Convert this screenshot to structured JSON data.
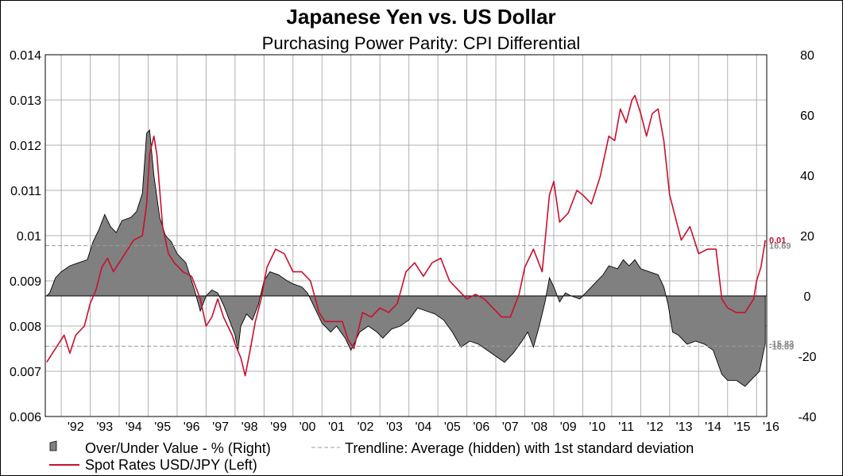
{
  "chart_data": {
    "type": "area",
    "title": "Japanese Yen vs. US Dollar",
    "subtitle": "Purchasing Power Parity: CPI Differential",
    "xlabel": "",
    "ylabel": "",
    "x_ticks": [
      "'92",
      "'93",
      "'94",
      "'95",
      "'96",
      "'97",
      "'98",
      "'99",
      "'00",
      "'01",
      "'02",
      "'03",
      "'04",
      "'05",
      "'06",
      "'07",
      "'08",
      "'09",
      "'10",
      "'11",
      "'12",
      "'13",
      "'14",
      "'15",
      "'16"
    ],
    "x_range": [
      1991.45,
      2016.35
    ],
    "left_axis": {
      "ylim": [
        0.006,
        0.014
      ],
      "ticks": [
        "0.006",
        "0.007",
        "0.008",
        "0.009",
        "0.01",
        "0.011",
        "0.012",
        "0.013",
        "0.014"
      ]
    },
    "right_axis": {
      "ylim": [
        -40,
        80
      ],
      "ticks": [
        "-40",
        "-20",
        "0",
        "20",
        "40",
        "60",
        "80"
      ]
    },
    "grid": true,
    "legend_position": "bottom",
    "series": [
      {
        "name": "Over/Under Value - %  (Right)",
        "axis": "right",
        "kind": "area",
        "color": "#808080",
        "points": [
          [
            1991.5,
            0
          ],
          [
            1991.6,
            1
          ],
          [
            1991.8,
            6
          ],
          [
            1992.0,
            8
          ],
          [
            1992.3,
            10
          ],
          [
            1992.6,
            11
          ],
          [
            1992.9,
            12
          ],
          [
            1993.1,
            18
          ],
          [
            1993.3,
            22
          ],
          [
            1993.5,
            27
          ],
          [
            1993.7,
            23
          ],
          [
            1993.9,
            21
          ],
          [
            1994.1,
            25
          ],
          [
            1994.4,
            26
          ],
          [
            1994.6,
            28
          ],
          [
            1994.8,
            34
          ],
          [
            1994.95,
            54
          ],
          [
            1995.05,
            55
          ],
          [
            1995.2,
            40
          ],
          [
            1995.4,
            26
          ],
          [
            1995.6,
            20
          ],
          [
            1995.8,
            18
          ],
          [
            1996.0,
            14
          ],
          [
            1996.3,
            11
          ],
          [
            1996.6,
            2
          ],
          [
            1996.8,
            -5
          ],
          [
            1997.0,
            0
          ],
          [
            1997.2,
            2
          ],
          [
            1997.4,
            1
          ],
          [
            1997.6,
            -3
          ],
          [
            1997.8,
            -8
          ],
          [
            1998.0,
            -13
          ],
          [
            1998.1,
            -18
          ],
          [
            1998.2,
            -10
          ],
          [
            1998.4,
            -6
          ],
          [
            1998.6,
            -8
          ],
          [
            1998.8,
            -3
          ],
          [
            1999.0,
            5
          ],
          [
            1999.2,
            8
          ],
          [
            1999.5,
            7
          ],
          [
            1999.8,
            5
          ],
          [
            2000.0,
            4
          ],
          [
            2000.3,
            3
          ],
          [
            2000.5,
            1
          ],
          [
            2000.8,
            -5
          ],
          [
            2001.0,
            -9
          ],
          [
            2001.3,
            -12
          ],
          [
            2001.5,
            -10
          ],
          [
            2001.8,
            -14
          ],
          [
            2002.0,
            -18
          ],
          [
            2002.3,
            -12
          ],
          [
            2002.6,
            -10
          ],
          [
            2002.9,
            -12
          ],
          [
            2003.1,
            -14
          ],
          [
            2003.4,
            -11
          ],
          [
            2003.7,
            -10
          ],
          [
            2004.0,
            -8
          ],
          [
            2004.3,
            -4
          ],
          [
            2004.6,
            -5
          ],
          [
            2004.9,
            -6
          ],
          [
            2005.2,
            -8
          ],
          [
            2005.5,
            -12
          ],
          [
            2005.8,
            -17
          ],
          [
            2006.1,
            -15
          ],
          [
            2006.4,
            -16
          ],
          [
            2006.7,
            -18
          ],
          [
            2007.0,
            -20
          ],
          [
            2007.3,
            -22
          ],
          [
            2007.6,
            -19
          ],
          [
            2007.9,
            -15
          ],
          [
            2008.1,
            -12
          ],
          [
            2008.3,
            -17
          ],
          [
            2008.5,
            -10
          ],
          [
            2008.7,
            -2
          ],
          [
            2008.85,
            6
          ],
          [
            2009.0,
            3
          ],
          [
            2009.2,
            -2
          ],
          [
            2009.4,
            1
          ],
          [
            2009.6,
            0
          ],
          [
            2009.9,
            -1
          ],
          [
            2010.1,
            1
          ],
          [
            2010.4,
            4
          ],
          [
            2010.7,
            7
          ],
          [
            2010.9,
            10
          ],
          [
            2011.2,
            9
          ],
          [
            2011.4,
            12
          ],
          [
            2011.6,
            10
          ],
          [
            2011.8,
            12
          ],
          [
            2012.0,
            9
          ],
          [
            2012.3,
            8
          ],
          [
            2012.6,
            7
          ],
          [
            2012.8,
            3
          ],
          [
            2012.95,
            -3
          ],
          [
            2013.1,
            -12
          ],
          [
            2013.3,
            -13
          ],
          [
            2013.6,
            -16
          ],
          [
            2013.9,
            -15
          ],
          [
            2014.2,
            -16
          ],
          [
            2014.5,
            -18
          ],
          [
            2014.8,
            -26
          ],
          [
            2015.0,
            -28
          ],
          [
            2015.3,
            -28
          ],
          [
            2015.6,
            -30
          ],
          [
            2015.9,
            -27
          ],
          [
            2016.1,
            -25
          ],
          [
            2016.25,
            -18
          ],
          [
            2016.3,
            -15.83
          ]
        ]
      },
      {
        "name": "Trendline: Average (hidden) with 1st standard deviation",
        "axis": "right",
        "kind": "bands",
        "color": "#999999",
        "values": [
          16.69,
          -16.69
        ]
      },
      {
        "name": "Spot Rates USD/JPY  (Left)",
        "axis": "left",
        "kind": "line",
        "color": "#c8102e",
        "points": [
          [
            1991.5,
            0.0072
          ],
          [
            1991.7,
            0.0074
          ],
          [
            1991.9,
            0.0076
          ],
          [
            1992.1,
            0.0078
          ],
          [
            1992.3,
            0.0074
          ],
          [
            1992.5,
            0.0078
          ],
          [
            1992.8,
            0.008
          ],
          [
            1993.0,
            0.0085
          ],
          [
            1993.2,
            0.0088
          ],
          [
            1993.4,
            0.0093
          ],
          [
            1993.6,
            0.0095
          ],
          [
            1993.8,
            0.0092
          ],
          [
            1994.0,
            0.0094
          ],
          [
            1994.2,
            0.0096
          ],
          [
            1994.5,
            0.0099
          ],
          [
            1994.8,
            0.01
          ],
          [
            1994.95,
            0.0107
          ],
          [
            1995.05,
            0.0118
          ],
          [
            1995.2,
            0.0122
          ],
          [
            1995.3,
            0.0118
          ],
          [
            1995.5,
            0.0102
          ],
          [
            1995.7,
            0.0096
          ],
          [
            1995.9,
            0.0094
          ],
          [
            1996.2,
            0.0092
          ],
          [
            1996.5,
            0.0091
          ],
          [
            1996.8,
            0.0086
          ],
          [
            1997.0,
            0.008
          ],
          [
            1997.2,
            0.0082
          ],
          [
            1997.4,
            0.0086
          ],
          [
            1997.6,
            0.0082
          ],
          [
            1997.9,
            0.0078
          ],
          [
            1998.0,
            0.0076
          ],
          [
            1998.2,
            0.0073
          ],
          [
            1998.35,
            0.0069
          ],
          [
            1998.5,
            0.0074
          ],
          [
            1998.7,
            0.0081
          ],
          [
            1998.9,
            0.0086
          ],
          [
            1999.1,
            0.0093
          ],
          [
            1999.4,
            0.0097
          ],
          [
            1999.7,
            0.0096
          ],
          [
            2000.0,
            0.0092
          ],
          [
            2000.3,
            0.0092
          ],
          [
            2000.6,
            0.009
          ],
          [
            2000.9,
            0.0083
          ],
          [
            2001.1,
            0.0081
          ],
          [
            2001.4,
            0.0081
          ],
          [
            2001.7,
            0.0081
          ],
          [
            2001.9,
            0.0077
          ],
          [
            2002.1,
            0.0075
          ],
          [
            2002.4,
            0.0083
          ],
          [
            2002.7,
            0.0082
          ],
          [
            2003.0,
            0.0084
          ],
          [
            2003.3,
            0.0083
          ],
          [
            2003.6,
            0.0085
          ],
          [
            2003.9,
            0.0092
          ],
          [
            2004.2,
            0.0094
          ],
          [
            2004.5,
            0.0091
          ],
          [
            2004.8,
            0.0094
          ],
          [
            2005.1,
            0.0095
          ],
          [
            2005.4,
            0.009
          ],
          [
            2005.7,
            0.0088
          ],
          [
            2006.0,
            0.0086
          ],
          [
            2006.3,
            0.0087
          ],
          [
            2006.6,
            0.0086
          ],
          [
            2006.9,
            0.0084
          ],
          [
            2007.2,
            0.0082
          ],
          [
            2007.5,
            0.0082
          ],
          [
            2007.8,
            0.0087
          ],
          [
            2008.0,
            0.0093
          ],
          [
            2008.3,
            0.0097
          ],
          [
            2008.6,
            0.0092
          ],
          [
            2008.85,
            0.0109
          ],
          [
            2009.0,
            0.0112
          ],
          [
            2009.2,
            0.0103
          ],
          [
            2009.5,
            0.0105
          ],
          [
            2009.8,
            0.011
          ],
          [
            2010.0,
            0.0109
          ],
          [
            2010.3,
            0.0107
          ],
          [
            2010.6,
            0.0113
          ],
          [
            2010.9,
            0.0122
          ],
          [
            2011.1,
            0.0121
          ],
          [
            2011.3,
            0.0128
          ],
          [
            2011.5,
            0.0125
          ],
          [
            2011.7,
            0.013
          ],
          [
            2011.8,
            0.0131
          ],
          [
            2012.0,
            0.0127
          ],
          [
            2012.2,
            0.0122
          ],
          [
            2012.4,
            0.0127
          ],
          [
            2012.6,
            0.0128
          ],
          [
            2012.8,
            0.0121
          ],
          [
            2013.0,
            0.0109
          ],
          [
            2013.2,
            0.0104
          ],
          [
            2013.4,
            0.0099
          ],
          [
            2013.7,
            0.0102
          ],
          [
            2014.0,
            0.0096
          ],
          [
            2014.3,
            0.0097
          ],
          [
            2014.6,
            0.0097
          ],
          [
            2014.8,
            0.0086
          ],
          [
            2015.0,
            0.0084
          ],
          [
            2015.3,
            0.0083
          ],
          [
            2015.6,
            0.0083
          ],
          [
            2015.9,
            0.0086
          ],
          [
            2016.0,
            0.009
          ],
          [
            2016.15,
            0.0093
          ],
          [
            2016.3,
            0.0099
          ]
        ]
      }
    ],
    "end_labels": [
      {
        "text": "0.01",
        "color": "#c8102e",
        "axis": "left",
        "value": 0.0099
      },
      {
        "text": "16.69",
        "color": "#888888",
        "axis": "right",
        "value": 16.69
      },
      {
        "text": "-15.83",
        "color": "#888888",
        "axis": "right",
        "value": -15.83
      },
      {
        "text": "-16.69",
        "color": "#888888",
        "axis": "right",
        "value": -16.69
      }
    ]
  },
  "legend": {
    "items": [
      {
        "label": "Over/Under Value - %  (Right)",
        "swatch": "area"
      },
      {
        "label": "Trendline: Average (hidden) with 1st standard deviation",
        "swatch": "dashed"
      },
      {
        "label": "Spot Rates USD/JPY  (Left)",
        "swatch": "line"
      }
    ]
  }
}
